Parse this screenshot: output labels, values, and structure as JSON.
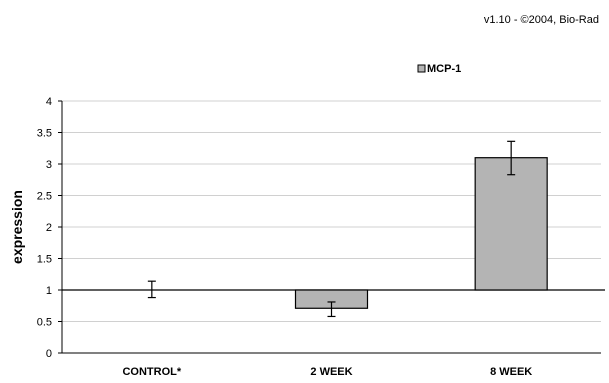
{
  "header": {
    "version_text": "v1.10 - ©2004, Bio-Rad"
  },
  "chart_data": {
    "type": "bar",
    "title": "",
    "xlabel": "",
    "ylabel": "expression",
    "ylim": [
      0,
      4
    ],
    "yticks": [
      "0",
      "0.5",
      "1",
      "1.5",
      "2",
      "2.5",
      "3",
      "3.5",
      "4"
    ],
    "baseline": 1,
    "grid": true,
    "legend_position": "top",
    "categories": [
      "CONTROL*",
      "2 WEEK",
      "8 WEEK"
    ],
    "series": [
      {
        "name": "MCP-1",
        "values": [
          1.0,
          0.71,
          3.1
        ],
        "error_low": [
          0.88,
          0.58,
          2.83
        ],
        "error_high": [
          1.14,
          0.81,
          3.36
        ],
        "color": "#b4b4b4"
      }
    ]
  }
}
